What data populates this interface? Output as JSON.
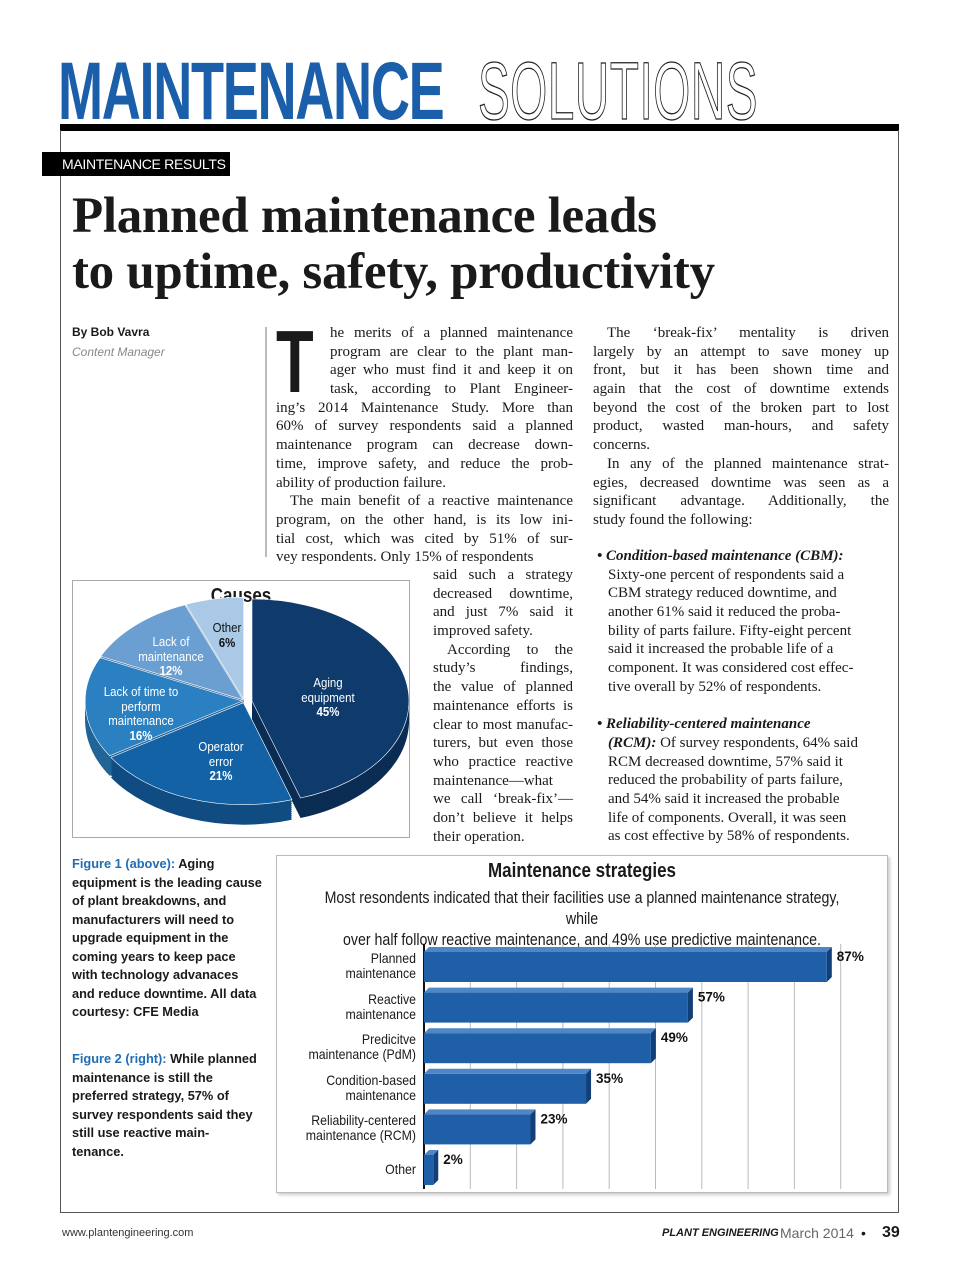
{
  "masthead": {
    "part1": "MAINTENANCE",
    "part2": "SOLUTIONS"
  },
  "section_tag": "MAINTENANCE RESULTS",
  "headline": [
    "Planned maintenance leads",
    "to uptime, safety, productivity"
  ],
  "byline": {
    "name": "By Bob Vavra",
    "role": "Content Manager"
  },
  "article": {
    "drop_cap": "T",
    "col_mid_top": [
      [
        "he merits of a planned maintenance",
        "program are clear to the plant man-",
        "ager who must find it and keep it on",
        "task, according to Plant Engineer-",
        "ing’s 2014 Maintenance Study. More than",
        "60% of survey respondents said a planned",
        "maintenance program can decrease down-",
        "time, improve safety, and reduce the prob-",
        "ability of production failure."
      ],
      [
        "The main benefit of a reactive maintenance",
        "program, on the other hand, is its low ini-",
        "tial cost, which was cited by 51% of sur-",
        "vey respondents. Only 15% of respondents"
      ]
    ],
    "col_mid_narrow": [
      [
        "said such a strategy",
        "decreased downtime,",
        "and just 7% said it",
        "improved safety."
      ],
      [
        "According to the",
        "study’s findings,",
        "the value of planned",
        "maintenance efforts is",
        "clear to most manufac-",
        "turers, but even those",
        "who practice reactive",
        "maintenance—what",
        "we call ‘break-fix’—",
        "don’t believe it helps",
        "their operation."
      ]
    ],
    "col_right": [
      [
        "The ‘break-fix’ mentality is driven",
        "largely by an attempt to save money up",
        "front, but it has been shown time and",
        "again that the cost of downtime extends",
        "beyond the cost of the broken part to lost",
        "product, wasted man-hours, and safety",
        "concerns."
      ],
      [
        "In any of the planned maintenance strat-",
        "egies, decreased downtime was seen as a",
        "significant advantage. Additionally, the",
        "study found the following:"
      ]
    ],
    "bullets": [
      {
        "heading": "• Condition-based maintenance (CBM):",
        "lines": [
          "Sixty-one percent of respondents said a",
          "CBM strategy reduced downtime, and",
          "another 61% said it reduced the proba-",
          "bility of parts failure. Fifty-eight percent",
          "said it increased the probable life of a",
          "component. It was considered cost effec-",
          "tive overall by 52% of respondents."
        ]
      },
      {
        "heading": "• Reliability-centered maintenance",
        "lead": "(RCM):",
        "lines": [
          " Of survey respondents, 64% said",
          "RCM decreased downtime, 57% said it",
          "reduced the probability of parts failure,",
          "and 54% said it increased the probable",
          "life of components. Overall, it was seen",
          "as cost effective by 58% of respondents."
        ]
      }
    ]
  },
  "captions": [
    {
      "label": "Figure 1 (above):",
      "text": " Aging equipment is the leading cause of plant breakdowns, and manufacturers will need to upgrade equipment in the coming years to keep pace with technology advanaces and reduce downtime. All data courtesy: CFE Media"
    },
    {
      "label": "Figure 2 (right):",
      "text": " While planned maintenance is still the preferred strategy, 57% of survey respondents said they still use reactive main-tenance."
    }
  ],
  "chart_data": [
    {
      "type": "pie",
      "title": "Causes",
      "slices": [
        {
          "label": "Aging equipment",
          "value": 45,
          "value_label": "45%",
          "color": "#0e3a6c"
        },
        {
          "label": "Operator error",
          "value": 21,
          "value_label": "21%",
          "color": "#1462a6"
        },
        {
          "label": "Lack of time to perform maintenance",
          "value": 16,
          "value_label": "16%",
          "color": "#2b80c2"
        },
        {
          "label": "Lack of maintenance",
          "value": 12,
          "value_label": "12%",
          "color": "#6b9fd1"
        },
        {
          "label": "Other",
          "value": 6,
          "value_label": "6%",
          "color": "#a9c9e7"
        }
      ]
    },
    {
      "type": "bar",
      "orientation": "horizontal",
      "title": "Maintenance strategies",
      "subtitle": [
        "Most resondents indicated that their facilities use a planned maintenance strategy, while",
        "over half follow reactive maintenance, and 49% use predictive maintenance."
      ],
      "categories": [
        [
          "Planned",
          "maintenance"
        ],
        [
          "Reactive",
          "maintenance"
        ],
        [
          "Predicitve",
          "maintenance (PdM)"
        ],
        [
          "Condition-based",
          "maintenance"
        ],
        [
          "Reliability-centered",
          "maintenance (RCM)"
        ],
        [
          "Other"
        ]
      ],
      "values": [
        87,
        57,
        49,
        35,
        23,
        2
      ],
      "value_labels": [
        "87%",
        "57%",
        "49%",
        "35%",
        "23%",
        "2%"
      ],
      "xlim": [
        0,
        90
      ],
      "grid": true,
      "bar_color": "#1f5fa8"
    }
  ],
  "footer": {
    "url": "www.plantengineering.com",
    "magazine": "PLANT ENGINEERING",
    "date": "March 2014",
    "separator": "•",
    "page": "39"
  }
}
